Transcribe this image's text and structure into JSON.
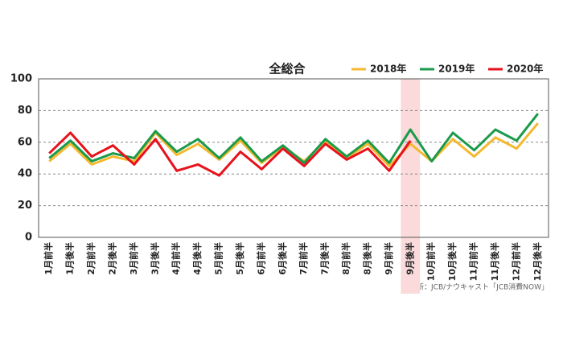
{
  "chart_data": {
    "type": "line",
    "title": "全総合",
    "categories": [
      "1月前半",
      "1月後半",
      "2月前半",
      "2月後半",
      "3月前半",
      "3月後半",
      "4月前半",
      "4月後半",
      "5月前半",
      "5月後半",
      "6月前半",
      "6月後半",
      "7月前半",
      "7月後半",
      "8月前半",
      "8月後半",
      "9月前半",
      "9月後半",
      "10月前半",
      "10月後半",
      "11月前半",
      "11月後半",
      "12月前半",
      "12月後半"
    ],
    "series": [
      {
        "name": "2018年",
        "color": "#f5b82e",
        "values": [
          48,
          59,
          46,
          51,
          48,
          66,
          52,
          59,
          49,
          61,
          47,
          57,
          48,
          61,
          50,
          59,
          45,
          59,
          48,
          62,
          51,
          63,
          56,
          72
        ]
      },
      {
        "name": "2019年",
        "color": "#1a9a4a",
        "values": [
          50,
          61,
          48,
          53,
          50,
          67,
          54,
          62,
          50,
          63,
          48,
          58,
          47,
          62,
          51,
          61,
          47,
          68,
          48,
          66,
          55,
          68,
          61,
          78
        ]
      },
      {
        "name": "2020年",
        "color": "#e8121c",
        "values": [
          53,
          66,
          51,
          58,
          46,
          62,
          42,
          46,
          39,
          54,
          43,
          56,
          45,
          59,
          49,
          56,
          42,
          61,
          null,
          null,
          null,
          null,
          null,
          null
        ]
      }
    ],
    "ylim": [
      0,
      100
    ],
    "yticks": [
      0,
      20,
      40,
      60,
      80,
      100
    ],
    "grid": true,
    "highlight_index": 17,
    "highlight_color": "#fadada",
    "source": "出所：JCB/ナウキャスト「JCB消費NOW」"
  }
}
